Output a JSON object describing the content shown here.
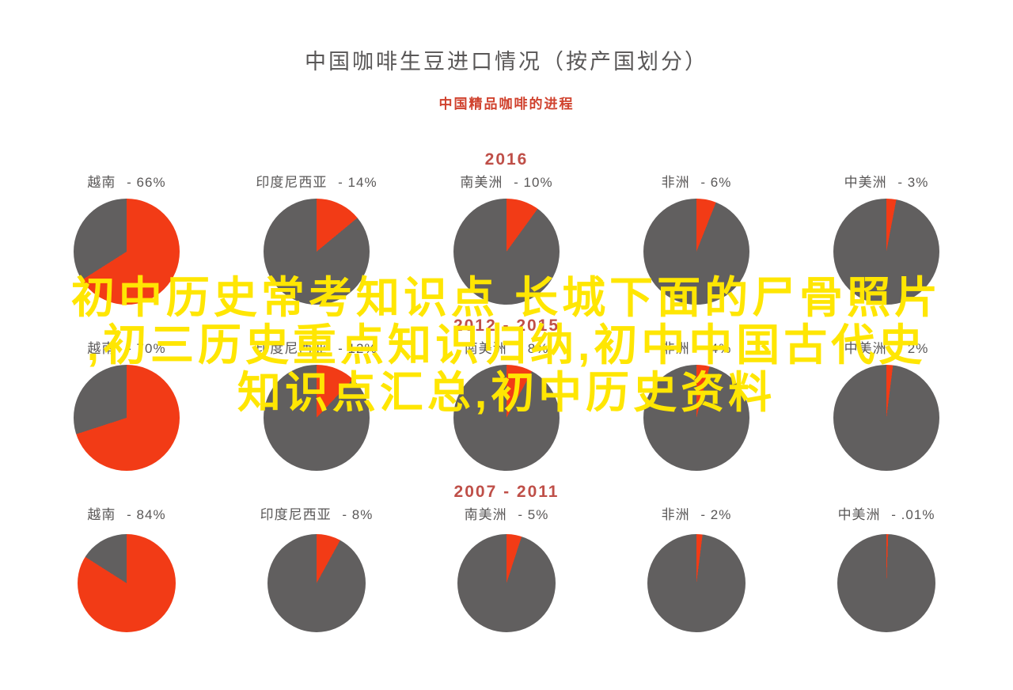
{
  "colors": {
    "slice_red": "#f23b16",
    "pie_grey": "#615f5f",
    "year_red": "#bf4f48",
    "subtitle_red": "#d0422e",
    "title_grey": "#595757",
    "watermark_yellow": "#ffe602",
    "background": "#ffffff"
  },
  "watermark": {
    "lines": [
      "初中历史常考知识点 长城下面的尸骨照片",
      ",初三历史重点知识归纳,初中中国古代史",
      "知识点汇总,初中历史资料"
    ]
  },
  "chart_data": {
    "type": "pie",
    "title": "中国咖啡生豆进口情况（按产国划分）",
    "subtitle": "中国精品咖啡的进程",
    "legend_position": "none",
    "groups": [
      {
        "year_label": "2016",
        "pies": [
          {
            "label": "越南",
            "pct_label": "- 66%",
            "value": 66
          },
          {
            "label": "印度尼西亚",
            "pct_label": "- 14%",
            "value": 14
          },
          {
            "label": "南美洲",
            "pct_label": "- 10%",
            "value": 10
          },
          {
            "label": "非洲",
            "pct_label": "- 6%",
            "value": 6
          },
          {
            "label": "中美洲",
            "pct_label": "- 3%",
            "value": 3
          }
        ]
      },
      {
        "year_label": "2012 - 2015",
        "pies": [
          {
            "label": "越南",
            "pct_label": "- 70%",
            "value": 70
          },
          {
            "label": "印度尼西亚",
            "pct_label": "- 12%",
            "value": 12
          },
          {
            "label": "南美洲",
            "pct_label": "- 8%",
            "value": 8
          },
          {
            "label": "非洲",
            "pct_label": "- 4%",
            "value": 4
          },
          {
            "label": "中美洲",
            "pct_label": "- 2%",
            "value": 2
          }
        ]
      },
      {
        "year_label": "2007 - 2011",
        "pies": [
          {
            "label": "越南",
            "pct_label": "- 84%",
            "value": 84
          },
          {
            "label": "印度尼西亚",
            "pct_label": "- 8%",
            "value": 8
          },
          {
            "label": "南美洲",
            "pct_label": "- 5%",
            "value": 5
          },
          {
            "label": "非洲",
            "pct_label": "- 2%",
            "value": 2
          },
          {
            "label": "中美洲",
            "pct_label": "- .01%",
            "value": 0.01
          }
        ]
      }
    ]
  }
}
